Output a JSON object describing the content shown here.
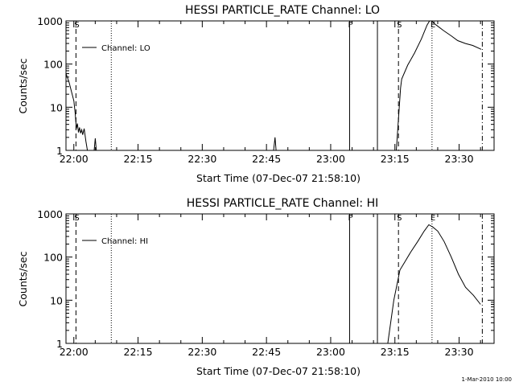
{
  "chart_data": [
    {
      "type": "line",
      "title": "HESSI PARTICLE_RATE Channel: LO",
      "xlabel": "Start Time (07-Dec-07 21:58:10)",
      "ylabel": "Counts/sec",
      "y_scale": "log",
      "ylim": [
        1,
        1000
      ],
      "xlim": [
        "21:58:10",
        "23:38:10"
      ],
      "x_ticks": [
        "22:00",
        "22:15",
        "22:30",
        "22:45",
        "23:00",
        "23:15",
        "23:30"
      ],
      "y_ticks": [
        "1",
        "10",
        "100",
        "1000"
      ],
      "legend": "Channel: LO",
      "legend_position": "top-left",
      "markers": [
        {
          "label": "S",
          "style": "dashed",
          "time": "22:00:30"
        },
        {
          "label": "",
          "style": "dotted",
          "time": "22:08:45"
        },
        {
          "label": "F",
          "style": "solid",
          "time": "23:04:25"
        },
        {
          "label": "",
          "style": "solid",
          "time": "23:10:55"
        },
        {
          "label": "S",
          "style": "dashed",
          "time": "23:15:50"
        },
        {
          "label": "E",
          "style": "dotted",
          "time": "23:23:40"
        },
        {
          "label": "",
          "style": "dash-dot",
          "time": "23:35:25"
        }
      ],
      "series": [
        {
          "segments": [
            [
              [
                "21:58:10",
                60
              ],
              [
                "21:58:50",
                40
              ],
              [
                "21:59:30",
                22
              ],
              [
                "22:00:00",
                14
              ],
              [
                "22:00:20",
                7
              ],
              [
                "22:00:35",
                3.2
              ],
              [
                "22:00:50",
                4.2
              ],
              [
                "22:01:05",
                2.6
              ],
              [
                "22:01:20",
                3.4
              ],
              [
                "22:01:35",
                2.5
              ],
              [
                "22:01:50",
                3.0
              ],
              [
                "22:02:05",
                2.3
              ],
              [
                "22:02:25",
                3.2
              ],
              [
                "22:02:50",
                1.6
              ],
              [
                "22:03:10",
                1.0
              ]
            ],
            [
              [
                "22:04:45",
                1.0
              ],
              [
                "22:05:00",
                1.9
              ],
              [
                "22:05:15",
                1.0
              ]
            ],
            [
              [
                "22:46:40",
                1.0
              ],
              [
                "22:47:00",
                2.0
              ],
              [
                "22:47:15",
                1.0
              ]
            ],
            [
              [
                "23:15:20",
                1.0
              ],
              [
                "23:16:20",
                28
              ],
              [
                "23:16:35",
                45
              ],
              [
                "23:18:00",
                95
              ],
              [
                "23:19:35",
                180
              ],
              [
                "23:21:10",
                380
              ],
              [
                "23:22:30",
                800
              ],
              [
                "23:23:05",
                1050
              ],
              [
                "23:23:30",
                1050
              ],
              [
                "23:24:40",
                800
              ],
              [
                "23:26:20",
                600
              ],
              [
                "23:28:10",
                450
              ],
              [
                "23:29:40",
                350
              ],
              [
                "23:31:30",
                300
              ],
              [
                "23:33:10",
                270
              ],
              [
                "23:35:10",
                220
              ]
            ]
          ]
        }
      ]
    },
    {
      "type": "line",
      "title": "HESSI PARTICLE_RATE Channel: HI",
      "xlabel": "Start Time (07-Dec-07 21:58:10)",
      "ylabel": "Counts/sec",
      "y_scale": "log",
      "ylim": [
        1,
        1000
      ],
      "xlim": [
        "21:58:10",
        "23:38:10"
      ],
      "x_ticks": [
        "22:00",
        "22:15",
        "22:30",
        "22:45",
        "23:00",
        "23:15",
        "23:30"
      ],
      "y_ticks": [
        "1",
        "10",
        "100",
        "1000"
      ],
      "legend": "Channel: HI",
      "legend_position": "top-left",
      "markers": [
        {
          "label": "S",
          "style": "dashed",
          "time": "22:00:30"
        },
        {
          "label": "",
          "style": "dotted",
          "time": "22:08:45"
        },
        {
          "label": "F",
          "style": "solid",
          "time": "23:04:25"
        },
        {
          "label": "",
          "style": "solid",
          "time": "23:10:55"
        },
        {
          "label": "S",
          "style": "dashed",
          "time": "23:15:50"
        },
        {
          "label": "E",
          "style": "dotted",
          "time": "23:23:40"
        },
        {
          "label": "",
          "style": "dash-dot",
          "time": "23:35:25"
        }
      ],
      "series": [
        {
          "segments": [
            [
              [
                "23:13:20",
                1.0
              ],
              [
                "23:14:45",
                10
              ],
              [
                "23:16:10",
                50
              ],
              [
                "23:17:25",
                80
              ],
              [
                "23:18:40",
                130
              ],
              [
                "23:20:20",
                230
              ],
              [
                "23:21:50",
                400
              ],
              [
                "23:22:55",
                560
              ],
              [
                "23:23:50",
                500
              ],
              [
                "23:25:00",
                400
              ],
              [
                "23:26:30",
                230
              ],
              [
                "23:28:10",
                100
              ],
              [
                "23:29:50",
                40
              ],
              [
                "23:31:30",
                20
              ],
              [
                "23:33:20",
                13
              ],
              [
                "23:35:00",
                8
              ]
            ]
          ]
        }
      ]
    }
  ],
  "footer": "1-Mar-2010 10:00"
}
